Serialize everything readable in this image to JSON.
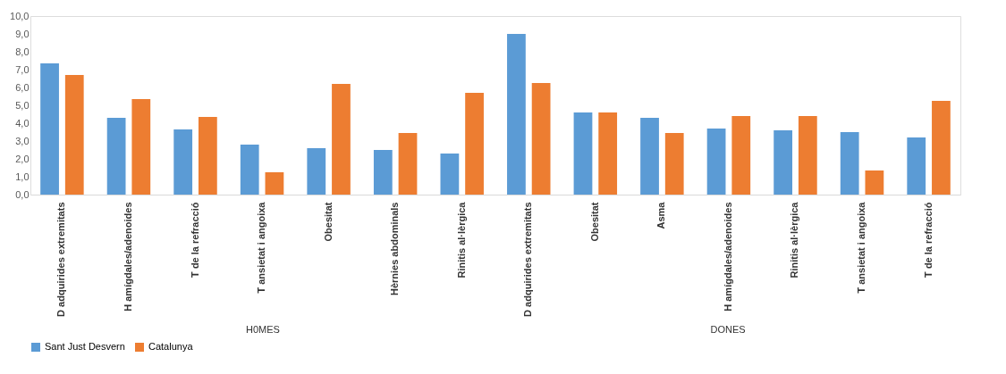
{
  "chart_data": {
    "type": "bar",
    "categories": [
      "D adquirides extremitats",
      "H amígdales/adenoides",
      "T de la refracció",
      "T ansietat i angoixa",
      "Obesitat",
      "Hèrnies abdominals",
      "Rinitis al·lèrgica",
      "D adquirides extremitats",
      "Obesitat",
      "Asma",
      "H amígdales/adenoides",
      "Rinitis al·lèrgica",
      "T ansietat i angoixa",
      "T de la refracció"
    ],
    "series": [
      {
        "name": "Sant Just Desvern",
        "color": "#5b9bd5",
        "values": [
          7.35,
          4.3,
          3.65,
          2.8,
          2.6,
          2.5,
          2.3,
          9.0,
          4.6,
          4.3,
          3.7,
          3.6,
          3.5,
          3.2
        ]
      },
      {
        "name": "Catalunya",
        "color": "#ed7d31",
        "values": [
          6.7,
          5.35,
          4.35,
          1.25,
          6.2,
          3.45,
          5.7,
          6.25,
          4.6,
          3.45,
          4.4,
          4.4,
          1.35,
          5.25
        ]
      }
    ],
    "ylim": [
      0,
      10
    ],
    "yticks": [
      {
        "value": 0,
        "label": "0,0"
      },
      {
        "value": 1,
        "label": "1,0"
      },
      {
        "value": 2,
        "label": "2,0"
      },
      {
        "value": 3,
        "label": "3,0"
      },
      {
        "value": 4,
        "label": "4,0"
      },
      {
        "value": 5,
        "label": "5,0"
      },
      {
        "value": 6,
        "label": "6,0"
      },
      {
        "value": 7,
        "label": "7,0"
      },
      {
        "value": 8,
        "label": "8,0"
      },
      {
        "value": 9,
        "label": "9,0"
      },
      {
        "value": 10,
        "label": "10,0"
      }
    ],
    "annotations": [
      "H0MES",
      "DONES"
    ],
    "grid": false,
    "legend": "bottom"
  }
}
